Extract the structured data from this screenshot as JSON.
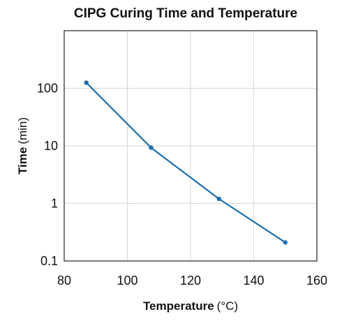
{
  "chart_data": {
    "type": "line",
    "title": "CIPG Curing Time and Temperature",
    "xlabel": {
      "main": "Temperature",
      "unit": "(°C)"
    },
    "ylabel": {
      "main": "Time",
      "unit": "(min)"
    },
    "x_ticks": [
      "80",
      "100",
      "120",
      "140",
      "160"
    ],
    "y_ticks": [
      "0.1",
      "1",
      "10",
      "100"
    ],
    "xlim": [
      80,
      160
    ],
    "ylim": [
      0.1,
      1000
    ],
    "y_scale": "log",
    "grid": true,
    "series": [
      {
        "color": "#1a6eb0",
        "x": [
          87,
          107.5,
          129,
          150
        ],
        "y": [
          125,
          9.3,
          1.2,
          0.21
        ]
      }
    ]
  }
}
